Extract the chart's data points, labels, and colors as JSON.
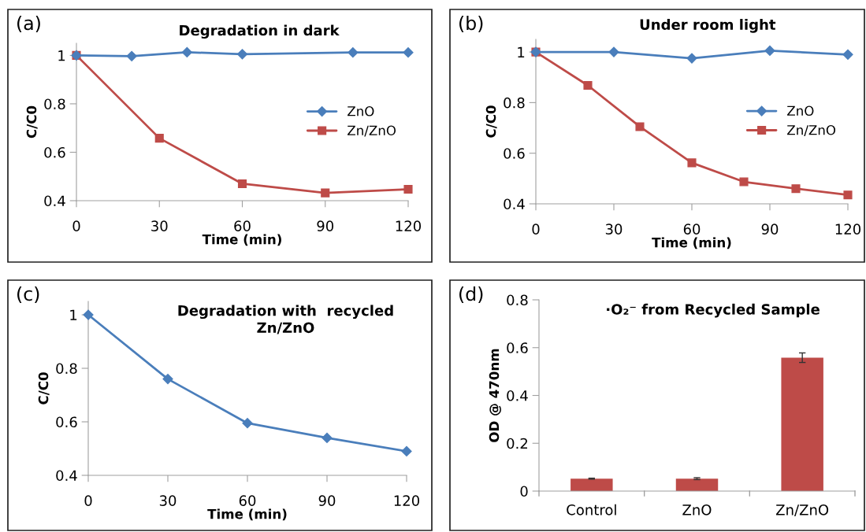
{
  "chart_data": [
    {
      "type": "line",
      "title": "Degradation in dark",
      "xlabel": "Time (min)",
      "ylabel": "C/C0",
      "annotations": [
        "(a)"
      ],
      "xlim": [
        0,
        120
      ],
      "xticks": [
        0,
        30,
        60,
        90,
        120
      ],
      "ylim": [
        0.4,
        1.05
      ],
      "yticks": [
        0.4,
        0.6,
        0.8,
        1
      ],
      "legend": "right",
      "series": [
        {
          "name": "ZnO",
          "color": "#4a7ebb",
          "marker": "diamond",
          "x": [
            0,
            20,
            40,
            60,
            100,
            120
          ],
          "values": [
            1.0,
            0.997,
            1.013,
            1.005,
            1.012,
            1.012
          ]
        },
        {
          "name": "Zn/ZnO",
          "color": "#be4b48",
          "marker": "square",
          "x": [
            0,
            30,
            60,
            90,
            120
          ],
          "values": [
            1.0,
            0.658,
            0.47,
            0.432,
            0.447
          ]
        }
      ]
    },
    {
      "type": "line",
      "title": "Under room light",
      "xlabel": "Time (min)",
      "ylabel": "C/C0",
      "annotations": [
        "(b)"
      ],
      "xlim": [
        0,
        120
      ],
      "xticks": [
        0,
        30,
        60,
        90,
        120
      ],
      "ylim": [
        0.4,
        1.05
      ],
      "yticks": [
        0.4,
        0.6,
        0.8,
        1
      ],
      "legend": "right",
      "series": [
        {
          "name": "ZnO",
          "color": "#4a7ebb",
          "marker": "diamond",
          "x": [
            0,
            30,
            60,
            90,
            120
          ],
          "values": [
            1.0,
            1.0,
            0.975,
            1.005,
            0.99
          ]
        },
        {
          "name": "Zn/ZnO",
          "color": "#be4b48",
          "marker": "square",
          "x": [
            0,
            20,
            40,
            60,
            80,
            100,
            120
          ],
          "values": [
            1.0,
            0.868,
            0.705,
            0.562,
            0.487,
            0.46,
            0.435
          ]
        }
      ]
    },
    {
      "type": "line",
      "title": "Degradation with  recycled\nZn/ZnO",
      "xlabel": "Time (min)",
      "ylabel": "C/C0",
      "annotations": [
        "(c)"
      ],
      "xlim": [
        0,
        120
      ],
      "xticks": [
        0,
        30,
        60,
        90,
        120
      ],
      "ylim": [
        0.4,
        1.05
      ],
      "yticks": [
        0.4,
        0.6,
        0.8,
        1
      ],
      "series": [
        {
          "color": "#4a7ebb",
          "marker": "diamond",
          "x": [
            0,
            30,
            60,
            90,
            120
          ],
          "values": [
            1.0,
            0.76,
            0.595,
            0.54,
            0.49
          ]
        }
      ]
    },
    {
      "type": "bar",
      "title": "·O₂⁻ from Recycled Sample",
      "ylabel": "OD @ 470nm",
      "annotations": [
        "(d)"
      ],
      "categories": [
        "Control",
        "ZnO",
        "Zn/ZnO"
      ],
      "ylim": [
        0,
        0.8
      ],
      "yticks": [
        0,
        0.2,
        0.4,
        0.6,
        0.8
      ],
      "series": [
        {
          "color": "#be4b48",
          "values": [
            0.052,
            0.052,
            0.558
          ],
          "errors": [
            0.002,
            0.004,
            0.02
          ]
        }
      ]
    }
  ]
}
